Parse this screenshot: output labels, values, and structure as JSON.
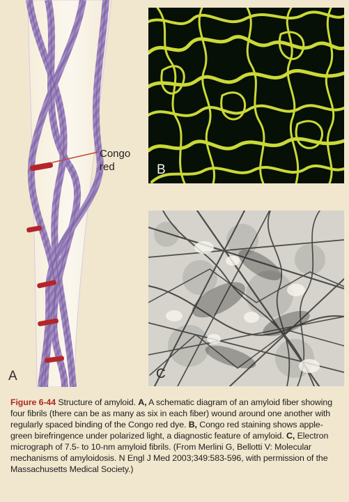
{
  "figure": {
    "panel_labels": {
      "a": "A",
      "b": "B",
      "c": "C"
    },
    "congo_label": "Congo red",
    "caption": {
      "figure_number": "Figure 6-44",
      "title": "Structure of amyloid.",
      "a_label": "A,",
      "a_text": "A schematic diagram of an amyloid fiber showing four fibrils (there can be as many as six in each fiber) wound around one another with regularly spaced binding of the Congo red dye.",
      "b_label": "B,",
      "b_text": "Congo red staining shows apple-green birefringence under polarized light, a diagnostic feature of amyloid.",
      "c_label": "C,",
      "c_text": "Electron micrograph of 7.5- to 10-nm amyloid fibrils. (From Merlini G, Bellotti V: Molecular mechanisms of amyloidosis. N Engl J Med 2003;349:583-596, with permission of the Massachusetts Medical Society.)"
    }
  },
  "colors": {
    "background": "#f1e7cf",
    "fibril": "#9c83bb",
    "fibril_dark": "#6f5a8d",
    "dye": "#b4252a",
    "birefringence": "#d6e43a",
    "caption_title": "#b0271d"
  }
}
